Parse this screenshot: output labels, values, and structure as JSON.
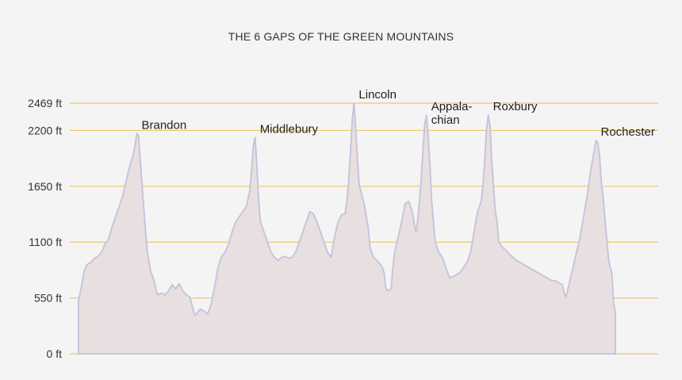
{
  "chart_data": {
    "type": "area",
    "title": "THE 6 GAPS OF THE GREEN MOUNTAINS",
    "xlabel": "",
    "ylabel": "",
    "ylim": [
      0,
      2469
    ],
    "grid": true,
    "y_ticks": [
      {
        "value": 0,
        "label": "0 ft"
      },
      {
        "value": 550,
        "label": "550 ft"
      },
      {
        "value": 1100,
        "label": "1100 ft"
      },
      {
        "value": 1650,
        "label": "1650 ft"
      },
      {
        "value": 2200,
        "label": "2200 ft"
      },
      {
        "value": 2469,
        "label": "2469 ft"
      }
    ],
    "series": [
      {
        "values": [
          [
            0,
            0
          ],
          [
            0,
            530
          ],
          [
            1,
            600
          ],
          [
            2,
            700
          ],
          [
            3,
            800
          ],
          [
            4,
            850
          ],
          [
            5,
            880
          ],
          [
            7,
            900
          ],
          [
            9,
            940
          ],
          [
            11,
            960
          ],
          [
            13,
            1000
          ],
          [
            15,
            1080
          ],
          [
            17,
            1130
          ],
          [
            19,
            1250
          ],
          [
            21,
            1350
          ],
          [
            23,
            1450
          ],
          [
            25,
            1550
          ],
          [
            27,
            1700
          ],
          [
            29,
            1850
          ],
          [
            31,
            1960
          ],
          [
            32,
            2050
          ],
          [
            33,
            2170
          ],
          [
            34,
            2150
          ],
          [
            35,
            1900
          ],
          [
            36,
            1650
          ],
          [
            37,
            1420
          ],
          [
            38,
            1200
          ],
          [
            39,
            1000
          ],
          [
            40,
            900
          ],
          [
            41,
            800
          ],
          [
            42,
            760
          ],
          [
            43,
            700
          ],
          [
            44,
            620
          ],
          [
            45,
            580
          ],
          [
            47,
            600
          ],
          [
            49,
            580
          ],
          [
            51,
            620
          ],
          [
            53,
            680
          ],
          [
            55,
            640
          ],
          [
            57,
            690
          ],
          [
            59,
            620
          ],
          [
            61,
            580
          ],
          [
            63,
            560
          ],
          [
            64,
            500
          ],
          [
            65,
            430
          ],
          [
            66,
            380
          ],
          [
            67,
            400
          ],
          [
            69,
            440
          ],
          [
            71,
            420
          ],
          [
            73,
            390
          ],
          [
            75,
            480
          ],
          [
            77,
            650
          ],
          [
            79,
            850
          ],
          [
            81,
            960
          ],
          [
            83,
            1000
          ],
          [
            85,
            1080
          ],
          [
            87,
            1200
          ],
          [
            89,
            1300
          ],
          [
            91,
            1350
          ],
          [
            93,
            1400
          ],
          [
            95,
            1450
          ],
          [
            97,
            1600
          ],
          [
            98,
            1800
          ],
          [
            99,
            2050
          ],
          [
            100,
            2130
          ],
          [
            101,
            1850
          ],
          [
            102,
            1500
          ],
          [
            103,
            1300
          ],
          [
            105,
            1200
          ],
          [
            107,
            1100
          ],
          [
            109,
            1000
          ],
          [
            111,
            950
          ],
          [
            113,
            920
          ],
          [
            115,
            950
          ],
          [
            117,
            960
          ],
          [
            119,
            940
          ],
          [
            121,
            950
          ],
          [
            123,
            1000
          ],
          [
            125,
            1100
          ],
          [
            127,
            1200
          ],
          [
            129,
            1300
          ],
          [
            131,
            1400
          ],
          [
            133,
            1380
          ],
          [
            135,
            1300
          ],
          [
            137,
            1200
          ],
          [
            139,
            1100
          ],
          [
            141,
            1000
          ],
          [
            143,
            950
          ],
          [
            145,
            1150
          ],
          [
            147,
            1300
          ],
          [
            149,
            1370
          ],
          [
            151,
            1380
          ],
          [
            152,
            1500
          ],
          [
            153,
            1700
          ],
          [
            154,
            2000
          ],
          [
            155,
            2300
          ],
          [
            156,
            2469
          ],
          [
            157,
            2200
          ],
          [
            158,
            1900
          ],
          [
            159,
            1650
          ],
          [
            160,
            1600
          ],
          [
            162,
            1450
          ],
          [
            164,
            1250
          ],
          [
            165,
            1050
          ],
          [
            167,
            950
          ],
          [
            169,
            920
          ],
          [
            171,
            880
          ],
          [
            172,
            850
          ],
          [
            173,
            800
          ],
          [
            174,
            650
          ],
          [
            175,
            620
          ],
          [
            177,
            640
          ],
          [
            178,
            850
          ],
          [
            179,
            1000
          ],
          [
            181,
            1150
          ],
          [
            183,
            1300
          ],
          [
            185,
            1480
          ],
          [
            187,
            1500
          ],
          [
            189,
            1400
          ],
          [
            190,
            1300
          ],
          [
            191,
            1200
          ],
          [
            192,
            1300
          ],
          [
            193,
            1500
          ],
          [
            194,
            1700
          ],
          [
            195,
            2000
          ],
          [
            196,
            2250
          ],
          [
            197,
            2350
          ],
          [
            198,
            2150
          ],
          [
            199,
            1850
          ],
          [
            200,
            1500
          ],
          [
            201,
            1300
          ],
          [
            202,
            1100
          ],
          [
            204,
            1000
          ],
          [
            206,
            950
          ],
          [
            208,
            850
          ],
          [
            209,
            800
          ],
          [
            210,
            750
          ],
          [
            212,
            760
          ],
          [
            214,
            780
          ],
          [
            216,
            800
          ],
          [
            218,
            850
          ],
          [
            220,
            900
          ],
          [
            222,
            1000
          ],
          [
            224,
            1200
          ],
          [
            226,
            1400
          ],
          [
            228,
            1500
          ],
          [
            229,
            1650
          ],
          [
            230,
            1900
          ],
          [
            231,
            2200
          ],
          [
            232,
            2350
          ],
          [
            233,
            2250
          ],
          [
            234,
            1900
          ],
          [
            235,
            1650
          ],
          [
            236,
            1400
          ],
          [
            237,
            1300
          ],
          [
            238,
            1100
          ],
          [
            240,
            1050
          ],
          [
            242,
            1020
          ],
          [
            244,
            980
          ],
          [
            246,
            950
          ],
          [
            248,
            920
          ],
          [
            250,
            900
          ],
          [
            252,
            880
          ],
          [
            254,
            860
          ],
          [
            256,
            840
          ],
          [
            258,
            820
          ],
          [
            260,
            800
          ],
          [
            262,
            780
          ],
          [
            264,
            760
          ],
          [
            266,
            740
          ],
          [
            268,
            720
          ],
          [
            270,
            720
          ],
          [
            272,
            700
          ],
          [
            274,
            680
          ],
          [
            275,
            600
          ],
          [
            276,
            560
          ],
          [
            278,
            700
          ],
          [
            280,
            850
          ],
          [
            282,
            1000
          ],
          [
            284,
            1150
          ],
          [
            286,
            1350
          ],
          [
            288,
            1550
          ],
          [
            290,
            1800
          ],
          [
            292,
            2000
          ],
          [
            293,
            2100
          ],
          [
            294,
            2080
          ],
          [
            295,
            1950
          ],
          [
            296,
            1700
          ],
          [
            297,
            1550
          ],
          [
            298,
            1350
          ],
          [
            299,
            1150
          ],
          [
            300,
            950
          ],
          [
            301,
            850
          ],
          [
            302,
            800
          ],
          [
            303,
            500
          ],
          [
            304,
            400
          ],
          [
            304,
            0
          ]
        ]
      }
    ],
    "xlim": [
      0,
      304
    ],
    "annotations": [
      {
        "label": "Brandon",
        "x": 33,
        "y": 2170
      },
      {
        "label": "Middlebury",
        "x": 100,
        "y": 2130
      },
      {
        "label": "Lincoln",
        "x": 156,
        "y": 2469
      },
      {
        "label": "Appala-",
        "label2": "chian",
        "x": 197,
        "y": 2350
      },
      {
        "label": "Roxbury",
        "x": 232,
        "y": 2350
      },
      {
        "label": "Rochester",
        "x": 293,
        "y": 2100
      }
    ],
    "colors": {
      "gridline": "#f0c86a",
      "area_fill": "#e8e0e0",
      "area_stroke": "#c8c4dc"
    }
  }
}
